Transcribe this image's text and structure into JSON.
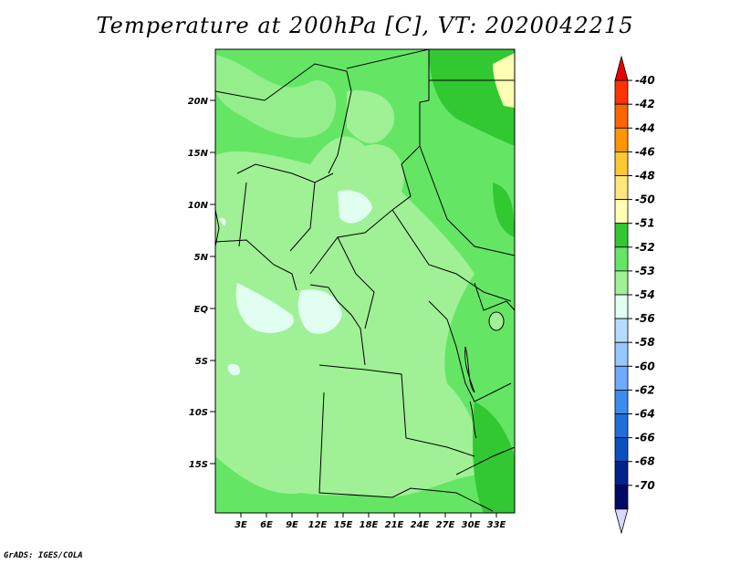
{
  "title": "Temperature at 200hPa [C], VT: 2020042215",
  "credit": "GrADS: IGES/COLA",
  "y_axis_labels": [
    "20N",
    "15N",
    "10N",
    "5N",
    "EQ",
    "5S",
    "10S",
    "15S"
  ],
  "x_axis_labels": [
    "3E",
    "6E",
    "9E",
    "12E",
    "15E",
    "18E",
    "21E",
    "24E",
    "27E",
    "30E",
    "33E"
  ],
  "colorbar": {
    "labels": [
      "-40",
      "-42",
      "-44",
      "-46",
      "-48",
      "-50",
      "-51",
      "-52",
      "-53",
      "-54",
      "-56",
      "-58",
      "-60",
      "-62",
      "-64",
      "-66",
      "-68",
      "-70"
    ],
    "colors": [
      "#e60000",
      "#ff3200",
      "#ff6400",
      "#ff9600",
      "#ffc832",
      "#ffe678",
      "#ffffb4",
      "#32c832",
      "#64e664",
      "#a0f096",
      "#e0fff0",
      "#b4dcff",
      "#96c8ff",
      "#6eaaff",
      "#3c8cf0",
      "#1e6edc",
      "#0a50be",
      "#00228c",
      "#000a64",
      "#d8d8ff"
    ]
  },
  "colors": {
    "green_dark": "#32c832",
    "green_mid": "#64e664",
    "green_light": "#a0f096",
    "cyan_light": "#e0fff0",
    "yellow_light": "#ffffb4"
  }
}
